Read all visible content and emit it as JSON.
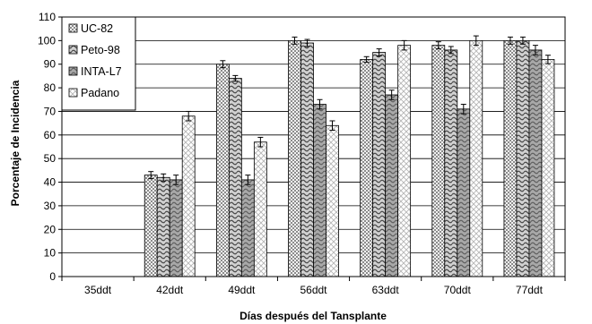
{
  "chart_data": {
    "type": "bar",
    "title": "",
    "xlabel": "Días después del Tansplante",
    "ylabel": "Porcentaje de Incidencia",
    "ylim": [
      0,
      110
    ],
    "yticks": [
      0,
      10,
      20,
      30,
      40,
      50,
      60,
      70,
      80,
      90,
      100,
      110
    ],
    "categories": [
      "35ddt",
      "42ddt",
      "49ddt",
      "56ddt",
      "63ddt",
      "70ddt",
      "77ddt"
    ],
    "grid": true,
    "legend_position": "top-left",
    "error_bars": true,
    "series": [
      {
        "name": "UC-82",
        "pattern": "checker",
        "values": [
          0,
          43,
          90,
          100,
          92,
          98,
          100
        ],
        "errors": [
          0,
          1.5,
          1.5,
          1.5,
          1.2,
          1.5,
          1.5
        ]
      },
      {
        "name": "Peto-98",
        "pattern": "wave-dark",
        "values": [
          0,
          42,
          84,
          99,
          95,
          96,
          100
        ],
        "errors": [
          0,
          1.5,
          1.2,
          1.5,
          1.5,
          1.5,
          1.5
        ]
      },
      {
        "name": "INTA-L7",
        "pattern": "wave-grey",
        "values": [
          0,
          41,
          41,
          73,
          77,
          71,
          96
        ],
        "errors": [
          0,
          2,
          2,
          2,
          2,
          2,
          2
        ]
      },
      {
        "name": "Padano",
        "pattern": "diamond",
        "values": [
          0,
          68,
          57,
          64,
          98,
          100,
          92
        ],
        "errors": [
          0,
          2,
          2,
          2,
          2,
          2,
          1.8
        ]
      }
    ]
  }
}
